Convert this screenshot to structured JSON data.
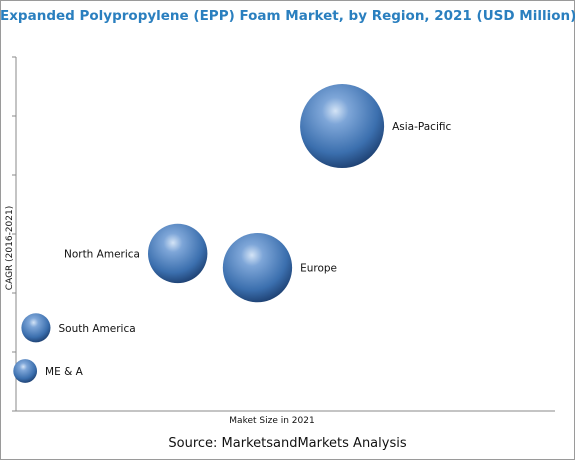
{
  "chart_data": {
    "type": "bubble",
    "title": "Expanded Polypropylene (EPP) Foam Market, by Region, 2021 (USD Million)",
    "xlabel": "Maket Size in 2021",
    "ylabel": "CAGR (2016-2021)",
    "source": "Source: MarketsandMarkets Analysis",
    "grid": false,
    "x_ticks_labeled": false,
    "y_ticks_labeled": false,
    "xlim": [
      0,
      100
    ],
    "ylim": [
      0,
      100
    ],
    "bubble_color": "#3b6fae",
    "points": [
      {
        "name": "Asia-Pacific",
        "x": 60.5,
        "y": 80.5,
        "size": 100
      },
      {
        "name": "North America",
        "x": 30.0,
        "y": 44.5,
        "size": 50
      },
      {
        "name": "Europe",
        "x": 44.8,
        "y": 40.5,
        "size": 68
      },
      {
        "name": "South America",
        "x": 3.7,
        "y": 23.5,
        "size": 12
      },
      {
        "name": "ME & A",
        "x": 1.7,
        "y": 11.3,
        "size": 8
      }
    ]
  }
}
